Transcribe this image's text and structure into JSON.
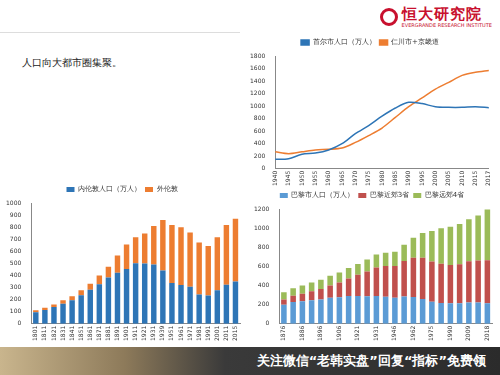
{
  "header": {
    "logo": "恒大研究院",
    "logo_en": "EVERGRANDE RESEARCH INSTITUTE"
  },
  "text": "人口向大都市圈集聚。",
  "footer": "关注微信“老韩实盘”回复“指标”免费领",
  "chart_data": [
    {
      "type": "line",
      "categories": [
        "1940",
        "1945",
        "1950",
        "1955",
        "1960",
        "1965",
        "1970",
        "1975",
        "1980",
        "1985",
        "1990",
        "1995",
        "2000",
        "2005",
        "2010",
        "2015",
        "2017"
      ],
      "series": [
        {
          "name": "首尔市人口（万人）",
          "color": "#2e75b6",
          "values": [
            150,
            160,
            230,
            250,
            300,
            400,
            560,
            690,
            840,
            970,
            1060,
            1040,
            990,
            980,
            980,
            990,
            975
          ]
        },
        {
          "name": "仁川市+京畿道",
          "color": "#ed7d31",
          "values": [
            270,
            240,
            270,
            300,
            310,
            330,
            420,
            530,
            650,
            820,
            990,
            1130,
            1270,
            1380,
            1490,
            1540,
            1570
          ]
        }
      ],
      "ylim": [
        0,
        1800
      ],
      "yticks": [
        0,
        200,
        400,
        600,
        800,
        1000,
        1200,
        1400,
        1600,
        1800
      ],
      "legend": "top",
      "grid": false
    },
    {
      "type": "bar",
      "stacked": true,
      "categories": [
        "1801",
        "1811",
        "1821",
        "1831",
        "1841",
        "1851",
        "1861",
        "1871",
        "1881",
        "1891",
        "1901",
        "1911",
        "1921",
        "1931",
        "1939",
        "1951",
        "1961",
        "1971",
        "1981",
        "1991",
        "2001",
        "2011",
        "2015"
      ],
      "series": [
        {
          "name": "内伦敦人口（万人）",
          "color": "#2e75b6",
          "values": [
            96,
            114,
            138,
            166,
            195,
            236,
            281,
            327,
            383,
            423,
            454,
            500,
            498,
            490,
            440,
            337,
            320,
            306,
            243,
            234,
            277,
            323,
            350
          ]
        },
        {
          "name": "外伦敦",
          "color": "#ed7d31",
          "values": [
            15,
            18,
            22,
            28,
            32,
            41,
            51,
            72,
            88,
            142,
            203,
            217,
            250,
            320,
            420,
            480,
            480,
            450,
            430,
            410,
            440,
            494,
            520
          ]
        }
      ],
      "ylim": [
        0,
        1000
      ],
      "yticks": [
        0,
        100,
        200,
        300,
        400,
        500,
        600,
        700,
        800,
        900,
        1000
      ],
      "legend": "top",
      "grid": false
    },
    {
      "type": "bar",
      "stacked": true,
      "categories": [
        "1876",
        null,
        "1886",
        null,
        "1896",
        null,
        "1906",
        null,
        "1921",
        null,
        "1931",
        null,
        "1946",
        null,
        "1962",
        null,
        "1975",
        null,
        "1990",
        null,
        "2009",
        null,
        "2018"
      ],
      "series": [
        {
          "name": "巴黎市人口（万人）",
          "color": "#5b9bd5",
          "values": [
            199,
            227,
            234,
            245,
            254,
            271,
            276,
            289,
            291,
            287,
            289,
            283,
            273,
            285,
            279,
            259,
            230,
            218,
            215,
            213,
            223,
            222,
            215
          ]
        },
        {
          "name": "巴黎近郊3省",
          "color": "#c0504d",
          "values": [
            55,
            65,
            80,
            95,
            110,
            130,
            155,
            185,
            220,
            260,
            300,
            320,
            330,
            370,
            410,
            430,
            420,
            410,
            400,
            410,
            430,
            440,
            450
          ]
        },
        {
          "name": "巴黎远郊4省",
          "color": "#9bbb59",
          "values": [
            76,
            80,
            85,
            90,
            95,
            100,
            105,
            110,
            115,
            125,
            135,
            140,
            150,
            170,
            210,
            260,
            320,
            370,
            400,
            420,
            440,
            470,
            530
          ]
        }
      ],
      "ylim": [
        0,
        1200
      ],
      "yticks": [
        0,
        200,
        400,
        600,
        800,
        1000,
        1200
      ],
      "legend": "top",
      "grid": false
    }
  ]
}
